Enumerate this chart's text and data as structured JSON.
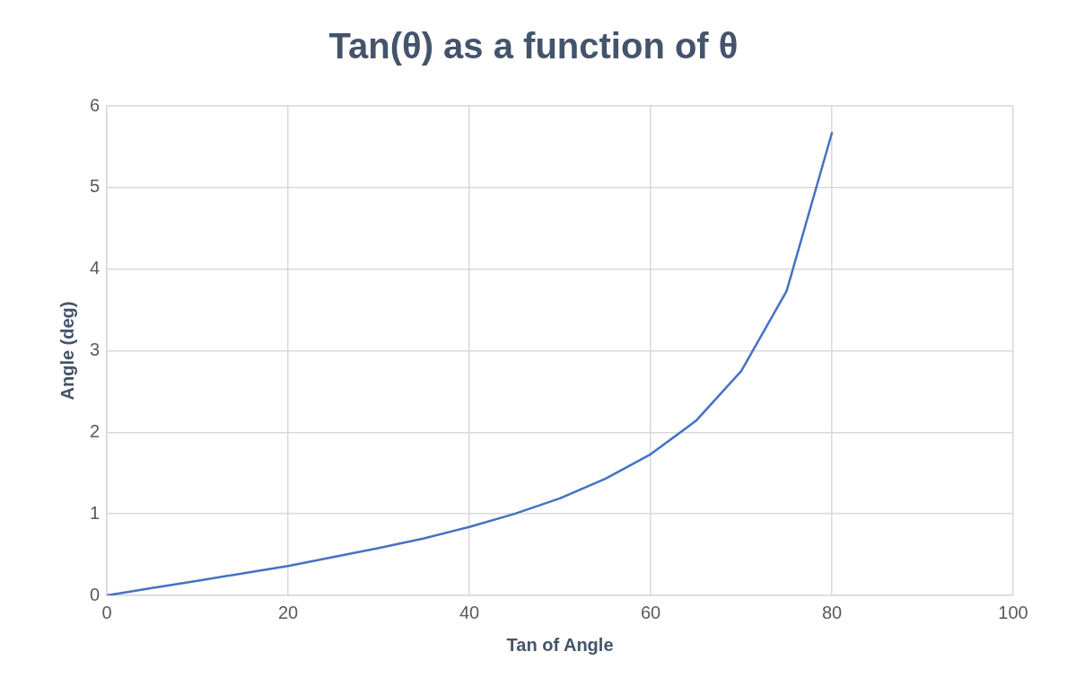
{
  "chart_data": {
    "type": "line",
    "title": "Tan(θ) as a function of θ",
    "xlabel": "Tan of Angle",
    "ylabel": "Angle (deg)",
    "x": [
      0,
      5,
      10,
      15,
      20,
      25,
      30,
      35,
      40,
      45,
      50,
      55,
      60,
      65,
      70,
      75,
      80
    ],
    "series": [
      {
        "color": "#4472c4",
        "values": [
          0,
          0.09,
          0.18,
          0.27,
          0.36,
          0.47,
          0.58,
          0.7,
          0.84,
          1.0,
          1.19,
          1.43,
          1.73,
          2.14,
          2.75,
          3.73,
          5.67
        ]
      }
    ],
    "xlim": [
      0,
      100
    ],
    "xticks": [
      0,
      20,
      40,
      60,
      80,
      100
    ],
    "ylim": [
      0,
      6
    ],
    "yticks": [
      0,
      1,
      2,
      3,
      4,
      5,
      6
    ],
    "grid": true,
    "legend": false,
    "marker": "none",
    "line_style": "solid"
  }
}
